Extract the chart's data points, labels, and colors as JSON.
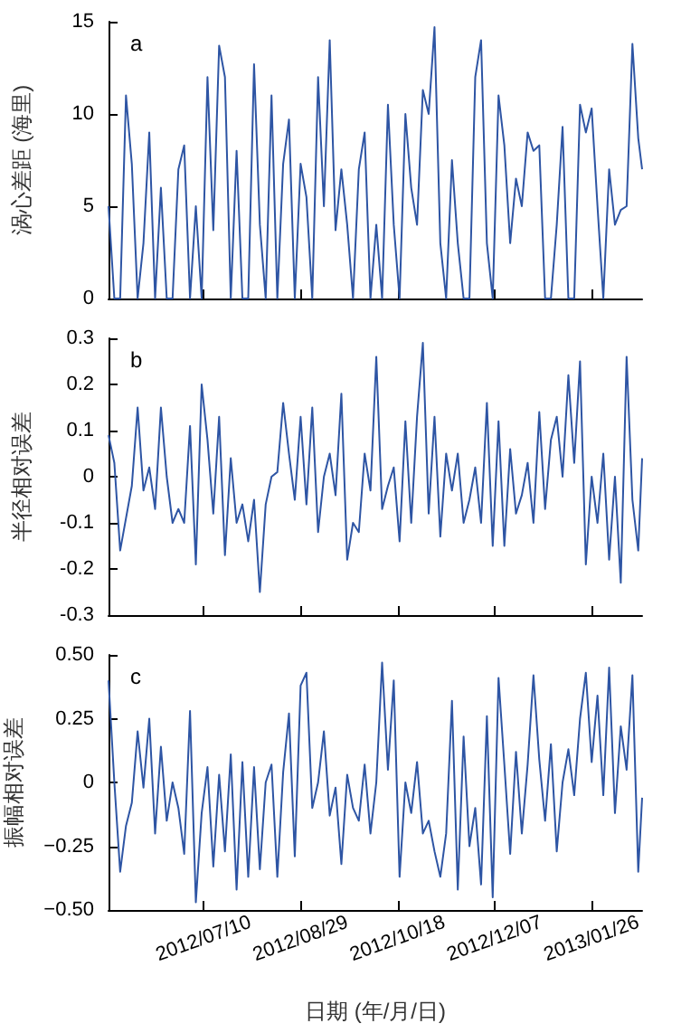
{
  "chart_data": [
    {
      "type": "line",
      "ylabel": "涡心差距 (海里)",
      "annotations": [
        "a"
      ],
      "color": "#2e55a4",
      "marker": "none",
      "line_style": "solid",
      "tick_labels": "y",
      "x": [
        "2012-05-22",
        "2012-05-25",
        "2012-05-28",
        "2012-05-31",
        "2012-06-03",
        "2012-06-06",
        "2012-06-09",
        "2012-06-12",
        "2012-06-15",
        "2012-06-18",
        "2012-06-21",
        "2012-06-24",
        "2012-06-27",
        "2012-06-30",
        "2012-07-03",
        "2012-07-06",
        "2012-07-09",
        "2012-07-12",
        "2012-07-15",
        "2012-07-18",
        "2012-07-21",
        "2012-07-24",
        "2012-07-27",
        "2012-07-30",
        "2012-08-02",
        "2012-08-05",
        "2012-08-08",
        "2012-08-11",
        "2012-08-14",
        "2012-08-17",
        "2012-08-20",
        "2012-08-23",
        "2012-08-26",
        "2012-08-29",
        "2012-09-01",
        "2012-09-04",
        "2012-09-07",
        "2012-09-10",
        "2012-09-13",
        "2012-09-16",
        "2012-09-19",
        "2012-09-22",
        "2012-09-25",
        "2012-09-28",
        "2012-10-01",
        "2012-10-04",
        "2012-10-07",
        "2012-10-10",
        "2012-10-13",
        "2012-10-16",
        "2012-10-19",
        "2012-10-22",
        "2012-10-25",
        "2012-10-28",
        "2012-10-31",
        "2012-11-03",
        "2012-11-06",
        "2012-11-09",
        "2012-11-12",
        "2012-11-15",
        "2012-11-18",
        "2012-11-21",
        "2012-11-24",
        "2012-11-27",
        "2012-11-30",
        "2012-12-03",
        "2012-12-06",
        "2012-12-09",
        "2012-12-12",
        "2012-12-15",
        "2012-12-18",
        "2012-12-21",
        "2012-12-24",
        "2012-12-27",
        "2012-12-30",
        "2013-01-02",
        "2013-01-05",
        "2013-01-08",
        "2013-01-11",
        "2013-01-14",
        "2013-01-17",
        "2013-01-20",
        "2013-01-23",
        "2013-01-26",
        "2013-01-29",
        "2013-02-01",
        "2013-02-04",
        "2013-02-07",
        "2013-02-10",
        "2013-02-13",
        "2013-02-16",
        "2013-02-19",
        "2013-02-21"
      ],
      "values": [
        5,
        0,
        0,
        11,
        7.3,
        0,
        3,
        9,
        0,
        6,
        0,
        0,
        7,
        8.3,
        0,
        5,
        0,
        12,
        3.7,
        13.7,
        12,
        0,
        8,
        0,
        0,
        12.7,
        4,
        0,
        11,
        0,
        7.3,
        9.7,
        0,
        7.3,
        5.5,
        0,
        12,
        5,
        14,
        3.7,
        7,
        4,
        0,
        7,
        9,
        0,
        4,
        0,
        10.5,
        4,
        0,
        10,
        6,
        4,
        11.3,
        10,
        14.7,
        3,
        0,
        7.5,
        3,
        0,
        0,
        12,
        14,
        3,
        0,
        11,
        8.3,
        3,
        6.5,
        5,
        9,
        8,
        8.3,
        0,
        0,
        4,
        9.3,
        0,
        0,
        10.5,
        9,
        10.3,
        5,
        0,
        7,
        4,
        4.8,
        5,
        13.8,
        8.7,
        7
      ],
      "xlim": [
        "2012-05-22",
        "2013-02-21"
      ],
      "xticks": [
        {
          "value": "2012-07-10",
          "label": null
        },
        {
          "value": "2012-08-29",
          "label": null
        },
        {
          "value": "2012-10-18",
          "label": null
        },
        {
          "value": "2012-12-07",
          "label": null
        },
        {
          "value": "2013-01-26",
          "label": null
        }
      ],
      "ylim": [
        0,
        15
      ],
      "yticks": [
        0,
        5,
        10,
        15
      ]
    },
    {
      "type": "line",
      "ylabel": "半径相对误差",
      "annotations": [
        "b"
      ],
      "color": "#2e55a4",
      "marker": "none",
      "line_style": "solid",
      "tick_labels": "y",
      "x": [
        "2012-05-22",
        "2012-05-25",
        "2012-05-28",
        "2012-05-31",
        "2012-06-03",
        "2012-06-06",
        "2012-06-09",
        "2012-06-12",
        "2012-06-15",
        "2012-06-18",
        "2012-06-21",
        "2012-06-24",
        "2012-06-27",
        "2012-06-30",
        "2012-07-03",
        "2012-07-06",
        "2012-07-09",
        "2012-07-12",
        "2012-07-15",
        "2012-07-18",
        "2012-07-21",
        "2012-07-24",
        "2012-07-27",
        "2012-07-30",
        "2012-08-02",
        "2012-08-05",
        "2012-08-08",
        "2012-08-11",
        "2012-08-14",
        "2012-08-17",
        "2012-08-20",
        "2012-08-23",
        "2012-08-26",
        "2012-08-29",
        "2012-09-01",
        "2012-09-04",
        "2012-09-07",
        "2012-09-10",
        "2012-09-13",
        "2012-09-16",
        "2012-09-19",
        "2012-09-22",
        "2012-09-25",
        "2012-09-28",
        "2012-10-01",
        "2012-10-04",
        "2012-10-07",
        "2012-10-10",
        "2012-10-13",
        "2012-10-16",
        "2012-10-19",
        "2012-10-22",
        "2012-10-25",
        "2012-10-28",
        "2012-10-31",
        "2012-11-03",
        "2012-11-06",
        "2012-11-09",
        "2012-11-12",
        "2012-11-15",
        "2012-11-18",
        "2012-11-21",
        "2012-11-24",
        "2012-11-27",
        "2012-11-30",
        "2012-12-03",
        "2012-12-06",
        "2012-12-09",
        "2012-12-12",
        "2012-12-15",
        "2012-12-18",
        "2012-12-21",
        "2012-12-24",
        "2012-12-27",
        "2012-12-30",
        "2013-01-02",
        "2013-01-05",
        "2013-01-08",
        "2013-01-11",
        "2013-01-14",
        "2013-01-17",
        "2013-01-20",
        "2013-01-23",
        "2013-01-26",
        "2013-01-29",
        "2013-02-01",
        "2013-02-04",
        "2013-02-07",
        "2013-02-10",
        "2013-02-13",
        "2013-02-16",
        "2013-02-19",
        "2013-02-21"
      ],
      "values": [
        0.09,
        0.03,
        -0.16,
        -0.09,
        -0.02,
        0.15,
        -0.03,
        0.02,
        -0.07,
        0.15,
        0,
        -0.1,
        -0.07,
        -0.1,
        0.11,
        -0.19,
        0.2,
        0.08,
        -0.08,
        0.13,
        -0.17,
        0.04,
        -0.1,
        -0.06,
        -0.14,
        -0.05,
        -0.25,
        -0.06,
        0,
        0.01,
        0.16,
        0.05,
        -0.05,
        0.13,
        -0.06,
        0.15,
        -0.12,
        0,
        0.05,
        -0.04,
        0.18,
        -0.18,
        -0.1,
        -0.12,
        0.05,
        -0.03,
        0.26,
        -0.07,
        -0.02,
        0.02,
        -0.14,
        0.12,
        -0.1,
        0.13,
        0.29,
        -0.08,
        0.13,
        -0.13,
        0.05,
        -0.03,
        0.05,
        -0.1,
        -0.05,
        0.02,
        -0.1,
        0.16,
        -0.15,
        0.12,
        -0.15,
        0.06,
        -0.08,
        -0.04,
        0.03,
        -0.1,
        0.14,
        -0.07,
        0.08,
        0.13,
        0,
        0.22,
        0.03,
        0.25,
        -0.19,
        0,
        -0.1,
        0.05,
        -0.18,
        0,
        -0.23,
        0.26,
        -0.05,
        -0.16,
        0.04
      ],
      "xlim": [
        "2012-05-22",
        "2013-02-21"
      ],
      "xticks": [
        {
          "value": "2012-07-10",
          "label": null
        },
        {
          "value": "2012-08-29",
          "label": null
        },
        {
          "value": "2012-10-18",
          "label": null
        },
        {
          "value": "2012-12-07",
          "label": null
        },
        {
          "value": "2013-01-26",
          "label": null
        }
      ],
      "ylim": [
        -0.3,
        0.3
      ],
      "yticks": [
        -0.3,
        -0.2,
        -0.1,
        0,
        0.1,
        0.2,
        0.3
      ]
    },
    {
      "type": "line",
      "ylabel": "振幅相对误差",
      "xlabel": "日期 (年/月/日)",
      "annotations": [
        "c"
      ],
      "color": "#2e55a4",
      "marker": "none",
      "line_style": "solid",
      "x": [
        "2012-05-22",
        "2012-05-25",
        "2012-05-28",
        "2012-05-31",
        "2012-06-03",
        "2012-06-06",
        "2012-06-09",
        "2012-06-12",
        "2012-06-15",
        "2012-06-18",
        "2012-06-21",
        "2012-06-24",
        "2012-06-27",
        "2012-06-30",
        "2012-07-03",
        "2012-07-06",
        "2012-07-09",
        "2012-07-12",
        "2012-07-15",
        "2012-07-18",
        "2012-07-21",
        "2012-07-24",
        "2012-07-27",
        "2012-07-30",
        "2012-08-02",
        "2012-08-05",
        "2012-08-08",
        "2012-08-11",
        "2012-08-14",
        "2012-08-17",
        "2012-08-20",
        "2012-08-23",
        "2012-08-26",
        "2012-08-29",
        "2012-09-01",
        "2012-09-04",
        "2012-09-07",
        "2012-09-10",
        "2012-09-13",
        "2012-09-16",
        "2012-09-19",
        "2012-09-22",
        "2012-09-25",
        "2012-09-28",
        "2012-10-01",
        "2012-10-04",
        "2012-10-07",
        "2012-10-10",
        "2012-10-13",
        "2012-10-16",
        "2012-10-19",
        "2012-10-22",
        "2012-10-25",
        "2012-10-28",
        "2012-10-31",
        "2012-11-03",
        "2012-11-06",
        "2012-11-09",
        "2012-11-12",
        "2012-11-15",
        "2012-11-18",
        "2012-11-21",
        "2012-11-24",
        "2012-11-27",
        "2012-11-30",
        "2012-12-03",
        "2012-12-06",
        "2012-12-09",
        "2012-12-12",
        "2012-12-15",
        "2012-12-18",
        "2012-12-21",
        "2012-12-24",
        "2012-12-27",
        "2012-12-30",
        "2013-01-02",
        "2013-01-05",
        "2013-01-08",
        "2013-01-11",
        "2013-01-14",
        "2013-01-17",
        "2013-01-20",
        "2013-01-23",
        "2013-01-26",
        "2013-01-29",
        "2013-02-01",
        "2013-02-04",
        "2013-02-07",
        "2013-02-10",
        "2013-02-13",
        "2013-02-16",
        "2013-02-19",
        "2013-02-21"
      ],
      "values": [
        0.4,
        0,
        -0.35,
        -0.17,
        -0.08,
        0.2,
        -0.02,
        0.25,
        -0.2,
        0.14,
        -0.15,
        0,
        -0.1,
        -0.28,
        0.28,
        -0.47,
        -0.12,
        0.06,
        -0.33,
        0.03,
        -0.27,
        0.11,
        -0.42,
        0.08,
        -0.37,
        0.06,
        -0.34,
        0,
        0.07,
        -0.37,
        0.04,
        0.27,
        -0.29,
        0.38,
        0.43,
        -0.1,
        0,
        0.2,
        -0.13,
        -0.02,
        -0.32,
        0.03,
        -0.1,
        -0.15,
        0.07,
        -0.2,
        0,
        0.47,
        0.05,
        0.4,
        -0.37,
        0,
        -0.12,
        0.08,
        -0.2,
        -0.15,
        -0.27,
        -0.37,
        -0.2,
        0.32,
        -0.42,
        0.18,
        -0.25,
        -0.1,
        -0.4,
        0.26,
        -0.45,
        0.41,
        0.07,
        -0.28,
        0.12,
        -0.2,
        0.07,
        0.42,
        0.09,
        -0.15,
        0.15,
        -0.27,
        0,
        0.13,
        -0.05,
        0.25,
        0.43,
        0.08,
        0.34,
        -0.05,
        0.45,
        -0.12,
        0.22,
        0.05,
        0.42,
        -0.35,
        -0.06
      ],
      "xlim": [
        "2012-05-22",
        "2013-02-21"
      ],
      "xticks": [
        {
          "value": "2012-07-10",
          "label": "2012/07/10"
        },
        {
          "value": "2012-08-29",
          "label": "2012/08/29"
        },
        {
          "value": "2012-10-18",
          "label": "2012/10/18"
        },
        {
          "value": "2012-12-07",
          "label": "2012/12/07"
        },
        {
          "value": "2013-01-26",
          "label": "2013/01/26"
        }
      ],
      "ylim": [
        -0.5,
        0.5
      ],
      "yticks": [
        {
          "value": -0.5,
          "label": "−0.50"
        },
        {
          "value": -0.25,
          "label": "−0.25"
        },
        0,
        {
          "value": 0.25,
          "label": "0.25"
        },
        {
          "value": 0.5,
          "label": "0.50"
        }
      ]
    }
  ]
}
